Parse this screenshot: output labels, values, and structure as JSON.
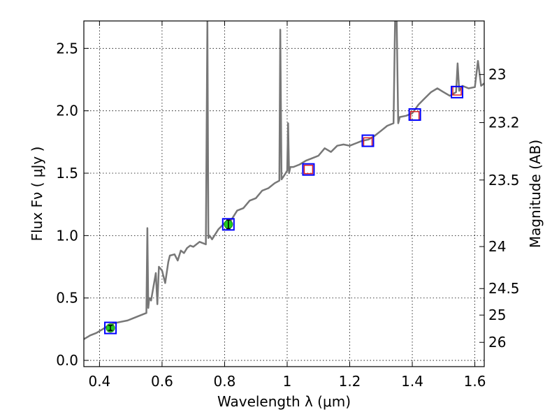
{
  "chart_data": {
    "type": "line",
    "xlabel": "Wavelength  λ (μm)",
    "ylabel": "Flux  Fν  ( μJy )",
    "y2label": "Magnitude (AB)",
    "xlim": [
      0.35,
      1.63
    ],
    "ylim": [
      -0.05,
      2.72
    ],
    "grid": true,
    "x_ticks": [
      0.4,
      0.6,
      0.8,
      1.0,
      1.2,
      1.4,
      1.6
    ],
    "x_tick_labels": [
      "0.4",
      "0.6",
      "0.8",
      "1",
      "1.2",
      "1.4",
      "1.6"
    ],
    "y_ticks": [
      0.0,
      0.5,
      1.0,
      1.5,
      2.0,
      2.5
    ],
    "y_tick_labels": [
      "0.0",
      "0.5",
      "1.0",
      "1.5",
      "2.0",
      "2.5"
    ],
    "mag_tick_labels": [
      "23",
      "23.2",
      "23.5",
      "24",
      "24.5",
      "25",
      "26"
    ],
    "series": [
      {
        "kind": "spectrum",
        "color": "#777777",
        "x": [
          0.35,
          0.37,
          0.39,
          0.41,
          0.43,
          0.45,
          0.47,
          0.49,
          0.51,
          0.53,
          0.55,
          0.553,
          0.556,
          0.559,
          0.565,
          0.58,
          0.585,
          0.59,
          0.6,
          0.61,
          0.62,
          0.625,
          0.64,
          0.65,
          0.66,
          0.67,
          0.68,
          0.69,
          0.7,
          0.72,
          0.74,
          0.745,
          0.748,
          0.752,
          0.76,
          0.78,
          0.8,
          0.82,
          0.84,
          0.86,
          0.88,
          0.9,
          0.92,
          0.94,
          0.96,
          0.975,
          0.978,
          0.982,
          0.99,
          1.0,
          1.003,
          1.006,
          1.01,
          1.02,
          1.04,
          1.06,
          1.08,
          1.1,
          1.12,
          1.14,
          1.16,
          1.18,
          1.2,
          1.22,
          1.24,
          1.26,
          1.28,
          1.3,
          1.32,
          1.34,
          1.345,
          1.35,
          1.355,
          1.36,
          1.38,
          1.4,
          1.42,
          1.44,
          1.46,
          1.48,
          1.5,
          1.52,
          1.54,
          1.545,
          1.55,
          1.56,
          1.58,
          1.6,
          1.61,
          1.62,
          1.63
        ],
        "y": [
          0.17,
          0.2,
          0.22,
          0.25,
          0.28,
          0.3,
          0.31,
          0.32,
          0.34,
          0.36,
          0.38,
          1.06,
          0.42,
          0.5,
          0.48,
          0.7,
          0.45,
          0.75,
          0.72,
          0.62,
          0.79,
          0.84,
          0.85,
          0.8,
          0.88,
          0.86,
          0.9,
          0.92,
          0.91,
          0.95,
          0.93,
          2.72,
          0.98,
          1.0,
          0.97,
          1.05,
          1.1,
          1.12,
          1.2,
          1.22,
          1.28,
          1.3,
          1.36,
          1.38,
          1.42,
          1.44,
          2.65,
          1.45,
          1.48,
          1.52,
          1.9,
          1.5,
          1.55,
          1.55,
          1.57,
          1.6,
          1.62,
          1.64,
          1.7,
          1.67,
          1.72,
          1.73,
          1.72,
          1.74,
          1.76,
          1.77,
          1.8,
          1.84,
          1.88,
          1.9,
          2.72,
          2.72,
          1.9,
          1.95,
          1.96,
          1.98,
          2.05,
          2.1,
          2.15,
          2.18,
          2.15,
          2.12,
          2.15,
          2.38,
          2.16,
          2.2,
          2.18,
          2.19,
          2.4,
          2.2,
          2.22
        ]
      },
      {
        "kind": "filled-points",
        "color": "#22cc22",
        "x": [
          0.435,
          0.812
        ],
        "y": [
          0.26,
          1.09
        ],
        "yerr": [
          0.02,
          0.035
        ]
      },
      {
        "kind": "open-squares",
        "color": "#dd2222",
        "x": [
          1.068,
          1.258,
          1.408,
          1.543
        ],
        "y": [
          1.53,
          1.75,
          1.96,
          2.16
        ]
      },
      {
        "kind": "square-markers",
        "color": "#0000ff",
        "x": [
          0.435,
          0.812,
          1.068,
          1.258,
          1.408,
          1.543
        ],
        "y": [
          0.26,
          1.09,
          1.53,
          1.76,
          1.97,
          2.15
        ]
      }
    ]
  }
}
